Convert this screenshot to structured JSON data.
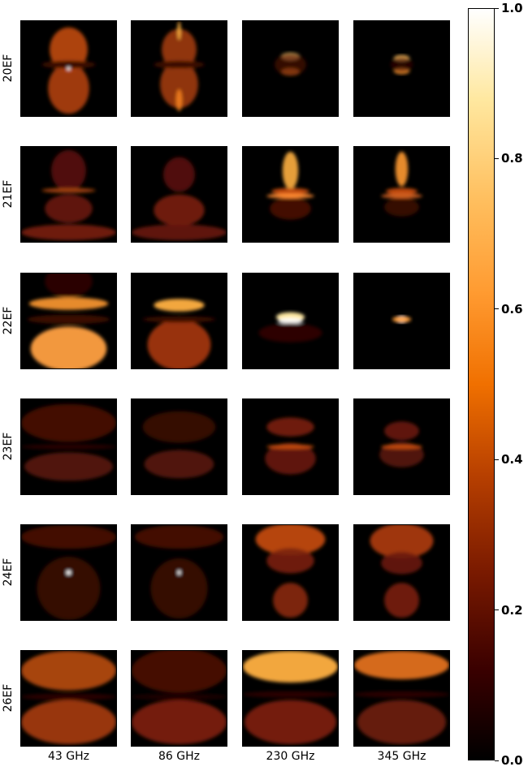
{
  "chart_data": {
    "type": "heatmap",
    "rows": [
      "20EF",
      "21EF",
      "22EF",
      "23EF",
      "24EF",
      "26EF"
    ],
    "columns": [
      "43 GHz",
      "86 GHz",
      "230 GHz",
      "345 GHz"
    ],
    "colorbar": {
      "colormap": "afmhot",
      "range": [
        0.0,
        1.0
      ],
      "ticks": [
        "0.0",
        "0.2",
        "0.4",
        "0.6",
        "0.8",
        "1.0"
      ],
      "tick_values": [
        0.0,
        0.2,
        0.4,
        0.6,
        0.8,
        1.0
      ]
    },
    "colors": {
      "background": "#000000",
      "low": "#3a0000",
      "mid": "#c04a00",
      "high": "#ffb040",
      "peak": "#ffffff"
    }
  }
}
